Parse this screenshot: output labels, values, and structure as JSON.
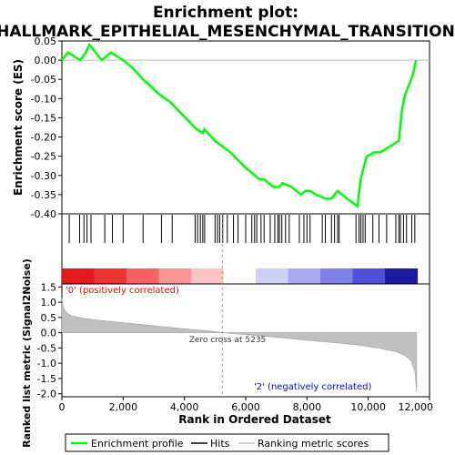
{
  "chart_data": [
    {
      "type": "line",
      "panel": "enrichment",
      "title": "Enrichment plot:",
      "subtitle": "HALLMARK_EPITHELIAL_MESENCHYMAL_TRANSITION",
      "ylabel": "Enrichment score (ES)",
      "xlim": [
        0,
        12000
      ],
      "ylim": [
        -0.4,
        0.05
      ],
      "yticks": [
        "0.05",
        "0.00",
        "-0.05",
        "-0.10",
        "-0.15",
        "-0.20",
        "-0.25",
        "-0.30",
        "-0.35",
        "-0.40"
      ],
      "color": "#00ff00",
      "series": [
        {
          "name": "Enrichment profile",
          "x": [
            0,
            200,
            600,
            780,
            900,
            1300,
            1600,
            2000,
            2300,
            2650,
            3200,
            3550,
            4400,
            4600,
            4650,
            5000,
            5500,
            6000,
            6300,
            6450,
            6600,
            6900,
            7100,
            7200,
            7500,
            7800,
            7950,
            8050,
            8100,
            8300,
            8600,
            8800,
            9000,
            9150,
            9300,
            9650,
            9750,
            9850,
            9950,
            10200,
            10400,
            10600,
            10800,
            11000,
            11100,
            11200,
            11350,
            11450,
            11560
          ],
          "y": [
            0.0,
            0.02,
            0.0,
            0.02,
            0.04,
            0.0,
            0.02,
            0.0,
            -0.02,
            -0.05,
            -0.09,
            -0.11,
            -0.18,
            -0.19,
            -0.18,
            -0.21,
            -0.24,
            -0.28,
            -0.3,
            -0.31,
            -0.31,
            -0.33,
            -0.33,
            -0.32,
            -0.33,
            -0.35,
            -0.34,
            -0.34,
            -0.34,
            -0.35,
            -0.36,
            -0.36,
            -0.34,
            -0.35,
            -0.36,
            -0.38,
            -0.31,
            -0.28,
            -0.25,
            -0.24,
            -0.24,
            -0.23,
            -0.22,
            -0.21,
            -0.13,
            -0.09,
            -0.06,
            -0.04,
            0.0
          ]
        }
      ]
    },
    {
      "type": "heatmap",
      "panel": "hits",
      "series_name": "Hits",
      "hit_positions": [
        240,
        580,
        720,
        820,
        950,
        1400,
        1650,
        2000,
        2650,
        3250,
        3600,
        4350,
        4430,
        4520,
        4600,
        4660,
        5000,
        5080,
        5150,
        5250,
        5400,
        5600,
        5750,
        6000,
        6200,
        6290,
        6360,
        6500,
        6600,
        6800,
        6950,
        7050,
        7100,
        7180,
        7300,
        7420,
        7750,
        7900,
        8000,
        8100,
        8500,
        8600,
        8800,
        8900,
        9000,
        9050,
        9600,
        9700,
        9760,
        9830,
        9900,
        10150,
        10350,
        10600,
        10900,
        11000,
        11050,
        11150,
        11250,
        11420,
        11520
      ],
      "bar_colors": [
        "#e41a1c",
        "#ee3333",
        "#f56060",
        "#f99595",
        "#fcc5c5",
        "#ffffff",
        "#d0d0f7",
        "#a8a8f0",
        "#7f7fe8",
        "#5050d8",
        "#1a1aa0"
      ]
    },
    {
      "type": "area",
      "panel": "metric",
      "xlabel": "Rank in Ordered Dataset",
      "ylabel": "Ranked list metric (Signal2Noise)",
      "xlim": [
        0,
        12000
      ],
      "ylim": [
        -2.1,
        1.6
      ],
      "xticks": [
        "0",
        "2,000",
        "4,000",
        "6,000",
        "8,000",
        "10,000",
        "12,000"
      ],
      "yticks": [
        "1.5",
        "1.0",
        "0.5",
        "0.0",
        "-0.5",
        "-1.0",
        "-1.5",
        "-2.0"
      ],
      "color": "#c0c0c0",
      "series": [
        {
          "name": "Ranking metric scores",
          "x": [
            0,
            50,
            150,
            300,
            600,
            1000,
            2000,
            3000,
            4000,
            5000,
            5235,
            6000,
            7000,
            8000,
            9000,
            9800,
            10400,
            10900,
            11200,
            11400,
            11520,
            11560,
            11580
          ],
          "y": [
            1.15,
            0.82,
            0.66,
            0.56,
            0.49,
            0.43,
            0.33,
            0.23,
            0.13,
            0.04,
            0.0,
            -0.06,
            -0.15,
            -0.25,
            -0.34,
            -0.42,
            -0.52,
            -0.62,
            -0.75,
            -0.92,
            -1.25,
            -1.7,
            -1.95
          ]
        }
      ],
      "zero_cross": 5235,
      "annotations": [
        "Zero cross at 5235",
        "'0' (positively correlated)",
        "'2' (negatively correlated)"
      ],
      "annotation_colors": [
        "#333333",
        "#ff0000",
        "#0000ff"
      ]
    }
  ],
  "legend": {
    "items": [
      {
        "label": "Enrichment profile",
        "color": "#00ff00"
      },
      {
        "label": "Hits",
        "color": "#000000"
      },
      {
        "label": "Ranking metric scores",
        "color": "#c0c0c0"
      }
    ]
  }
}
